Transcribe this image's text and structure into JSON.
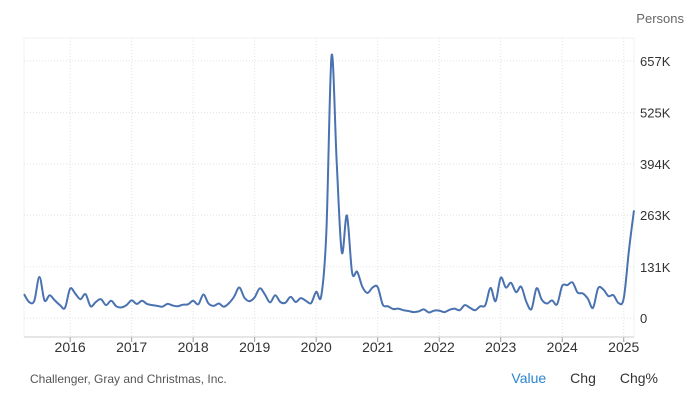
{
  "unit_label": "Persons",
  "source": "Challenger, Gray and Christmas, Inc.",
  "tabs": [
    {
      "label": "Value",
      "active": true
    },
    {
      "label": "Chg",
      "active": false
    },
    {
      "label": "Chg%",
      "active": false
    }
  ],
  "colors": {
    "line": "#4a72b0",
    "grid": "#e1e1e1",
    "axis_text": "#333333",
    "active_tab": "#2a84d2"
  },
  "chart_data": {
    "type": "line",
    "title": "",
    "xlabel": "",
    "ylabel": "Persons",
    "ylim": [
      0,
      700000
    ],
    "yticks": [
      {
        "value": 0,
        "label": "0"
      },
      {
        "value": 131000,
        "label": "131K"
      },
      {
        "value": 263000,
        "label": "263K"
      },
      {
        "value": 394000,
        "label": "394K"
      },
      {
        "value": 525000,
        "label": "525K"
      },
      {
        "value": 657000,
        "label": "657K"
      }
    ],
    "xlim": [
      "2015-04",
      "2025-03"
    ],
    "xticks": [
      "2016",
      "2017",
      "2018",
      "2019",
      "2020",
      "2021",
      "2022",
      "2023",
      "2024",
      "2025"
    ],
    "grid": true,
    "series": [
      {
        "name": "",
        "x": [
          "2015-04",
          "2015-05",
          "2015-06",
          "2015-07",
          "2015-08",
          "2015-09",
          "2015-10",
          "2015-11",
          "2015-12",
          "2016-01",
          "2016-02",
          "2016-03",
          "2016-04",
          "2016-05",
          "2016-06",
          "2016-07",
          "2016-08",
          "2016-09",
          "2016-10",
          "2016-11",
          "2016-12",
          "2017-01",
          "2017-02",
          "2017-03",
          "2017-04",
          "2017-05",
          "2017-06",
          "2017-07",
          "2017-08",
          "2017-09",
          "2017-10",
          "2017-11",
          "2017-12",
          "2018-01",
          "2018-02",
          "2018-03",
          "2018-04",
          "2018-05",
          "2018-06",
          "2018-07",
          "2018-08",
          "2018-09",
          "2018-10",
          "2018-11",
          "2018-12",
          "2019-01",
          "2019-02",
          "2019-03",
          "2019-04",
          "2019-05",
          "2019-06",
          "2019-07",
          "2019-08",
          "2019-09",
          "2019-10",
          "2019-11",
          "2019-12",
          "2020-01",
          "2020-02",
          "2020-03",
          "2020-04",
          "2020-05",
          "2020-06",
          "2020-07",
          "2020-08",
          "2020-09",
          "2020-10",
          "2020-11",
          "2020-12",
          "2021-01",
          "2021-02",
          "2021-03",
          "2021-04",
          "2021-05",
          "2021-06",
          "2021-07",
          "2021-08",
          "2021-09",
          "2021-10",
          "2021-11",
          "2021-12",
          "2022-01",
          "2022-02",
          "2022-03",
          "2022-04",
          "2022-05",
          "2022-06",
          "2022-07",
          "2022-08",
          "2022-09",
          "2022-10",
          "2022-11",
          "2022-12",
          "2023-01",
          "2023-02",
          "2023-03",
          "2023-04",
          "2023-05",
          "2023-06",
          "2023-07",
          "2023-08",
          "2023-09",
          "2023-10",
          "2023-11",
          "2023-12",
          "2024-01",
          "2024-02",
          "2024-03",
          "2024-04",
          "2024-05",
          "2024-06",
          "2024-07",
          "2024-08",
          "2024-09",
          "2024-10",
          "2024-11",
          "2024-12",
          "2025-01",
          "2025-02",
          "2025-03"
        ],
        "values": [
          61000,
          41000,
          44000,
          105000,
          45000,
          58000,
          45000,
          33000,
          26000,
          75000,
          62000,
          48000,
          61000,
          30000,
          41000,
          48000,
          33000,
          44000,
          30000,
          27000,
          33000,
          45000,
          36000,
          44000,
          36000,
          33000,
          31000,
          29000,
          36000,
          32000,
          30000,
          34000,
          35000,
          44000,
          35000,
          60000,
          37000,
          31000,
          37000,
          29000,
          38000,
          55000,
          78000,
          52000,
          43000,
          53000,
          76000,
          60000,
          40000,
          58000,
          41000,
          39000,
          54000,
          41000,
          51000,
          44000,
          38000,
          67000,
          57000,
          223000,
          671000,
          398000,
          168000,
          262000,
          116000,
          118000,
          80000,
          64000,
          78000,
          79000,
          34000,
          30000,
          23000,
          24000,
          20000,
          18000,
          15000,
          17000,
          22000,
          14000,
          19000,
          19000,
          15000,
          21000,
          24000,
          20000,
          33000,
          26000,
          20000,
          30000,
          33000,
          77000,
          43000,
          103000,
          78000,
          90000,
          66000,
          80000,
          41000,
          23000,
          76000,
          47000,
          37000,
          45000,
          35000,
          82000,
          84000,
          91000,
          65000,
          63000,
          49000,
          26000,
          76000,
          73000,
          56000,
          58000,
          38000,
          50000,
          172000,
          275000
        ]
      }
    ]
  }
}
